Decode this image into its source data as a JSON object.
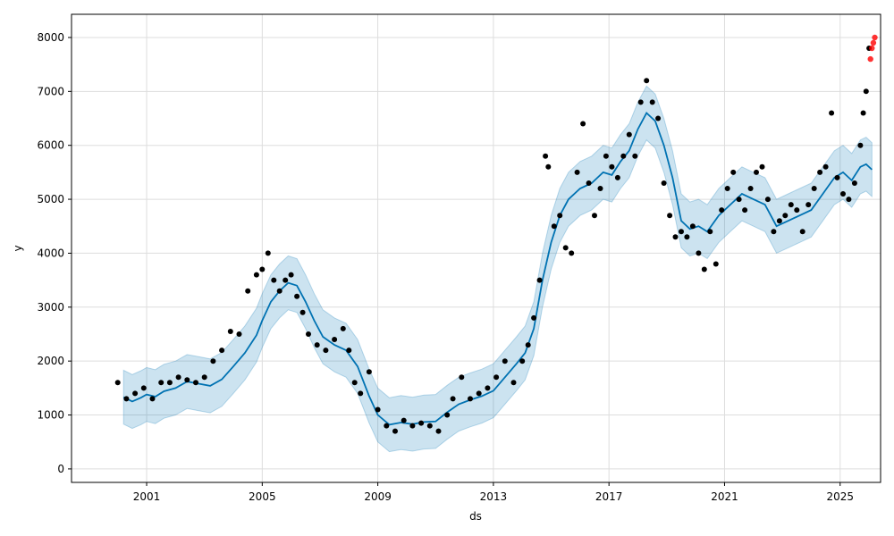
{
  "chart_data": {
    "type": "scatter",
    "title": "",
    "xlabel": "ds",
    "ylabel": "y",
    "xlim": [
      1998.4,
      2026.4
    ],
    "ylim": [
      -250,
      8430
    ],
    "grid": true,
    "x_ticks": [
      {
        "value": 2001,
        "label": "2001"
      },
      {
        "value": 2005,
        "label": "2005"
      },
      {
        "value": 2009,
        "label": "2009"
      },
      {
        "value": 2013,
        "label": "2013"
      },
      {
        "value": 2017,
        "label": "2017"
      },
      {
        "value": 2021,
        "label": "2021"
      },
      {
        "value": 2025,
        "label": "2025"
      }
    ],
    "y_ticks": [
      {
        "value": 0,
        "label": "0"
      },
      {
        "value": 1000,
        "label": "1000"
      },
      {
        "value": 2000,
        "label": "2000"
      },
      {
        "value": 3000,
        "label": "3000"
      },
      {
        "value": 4000,
        "label": "4000"
      },
      {
        "value": 5000,
        "label": "5000"
      },
      {
        "value": 6000,
        "label": "6000"
      },
      {
        "value": 7000,
        "label": "7000"
      },
      {
        "value": 8000,
        "label": "8000"
      }
    ],
    "colors": {
      "observed": "#000000",
      "recent": "#ff0000",
      "forecast_line": "#0072b2",
      "uncertainty_band": "#0072b2"
    },
    "series": [
      {
        "role": "forecast",
        "x": [
          2000.2,
          2000.5,
          2000.8,
          2001.0,
          2001.3,
          2001.6,
          2002.0,
          2002.4,
          2002.8,
          2003.2,
          2003.6,
          2004.0,
          2004.4,
          2004.8,
          2005.0,
          2005.3,
          2005.6,
          2005.9,
          2006.2,
          2006.5,
          2006.8,
          2007.1,
          2007.5,
          2007.9,
          2008.3,
          2008.7,
          2009.0,
          2009.4,
          2009.8,
          2010.2,
          2010.6,
          2011.0,
          2011.4,
          2011.8,
          2012.2,
          2012.6,
          2013.0,
          2013.4,
          2013.8,
          2014.1,
          2014.4,
          2014.7,
          2015.0,
          2015.3,
          2015.6,
          2016.0,
          2016.4,
          2016.8,
          2017.1,
          2017.4,
          2017.7,
          2018.0,
          2018.3,
          2018.6,
          2018.9,
          2019.2,
          2019.5,
          2019.8,
          2020.1,
          2020.4,
          2020.8,
          2021.2,
          2021.6,
          2022.0,
          2022.4,
          2022.8,
          2023.2,
          2023.6,
          2024.0,
          2024.4,
          2024.8,
          2025.1,
          2025.4,
          2025.7,
          2025.9,
          2026.1
        ],
        "yhat": [
          1330,
          1250,
          1320,
          1380,
          1340,
          1440,
          1500,
          1620,
          1580,
          1540,
          1660,
          1900,
          2150,
          2480,
          2750,
          3100,
          3300,
          3450,
          3400,
          3100,
          2750,
          2450,
          2300,
          2200,
          1900,
          1350,
          1000,
          820,
          860,
          830,
          870,
          880,
          1050,
          1200,
          1280,
          1350,
          1450,
          1700,
          1950,
          2150,
          2600,
          3500,
          4200,
          4700,
          5000,
          5200,
          5300,
          5500,
          5450,
          5700,
          5900,
          6300,
          6600,
          6450,
          6000,
          5400,
          4600,
          4450,
          4500,
          4400,
          4700,
          4900,
          5100,
          5000,
          4900,
          4500,
          4600,
          4700,
          4800,
          5100,
          5400,
          5500,
          5350,
          5600,
          5650,
          5550
        ],
        "yhat_lower": [
          830,
          750,
          820,
          880,
          840,
          940,
          1000,
          1120,
          1080,
          1040,
          1160,
          1400,
          1650,
          1980,
          2250,
          2600,
          2800,
          2950,
          2900,
          2600,
          2250,
          1950,
          1800,
          1700,
          1400,
          850,
          500,
          320,
          360,
          330,
          370,
          380,
          550,
          700,
          780,
          850,
          950,
          1200,
          1450,
          1650,
          2100,
          3000,
          3700,
          4200,
          4500,
          4700,
          4800,
          5000,
          4950,
          5200,
          5400,
          5800,
          6100,
          5950,
          5500,
          4900,
          4100,
          3950,
          4000,
          3900,
          4200,
          4400,
          4600,
          4500,
          4400,
          4000,
          4100,
          4200,
          4300,
          4600,
          4900,
          5000,
          4850,
          5100,
          5150,
          5050
        ],
        "yhat_upper": [
          1830,
          1750,
          1820,
          1880,
          1840,
          1940,
          2000,
          2120,
          2080,
          2040,
          2160,
          2400,
          2650,
          2980,
          3250,
          3600,
          3800,
          3950,
          3900,
          3600,
          3250,
          2950,
          2800,
          2700,
          2400,
          1850,
          1500,
          1320,
          1360,
          1330,
          1370,
          1380,
          1550,
          1700,
          1780,
          1850,
          1950,
          2200,
          2450,
          2650,
          3100,
          4000,
          4700,
          5200,
          5500,
          5700,
          5800,
          6000,
          5950,
          6200,
          6400,
          6800,
          7100,
          6950,
          6500,
          5900,
          5100,
          4950,
          5000,
          4900,
          5200,
          5400,
          5600,
          5500,
          5400,
          5000,
          5100,
          5200,
          5300,
          5600,
          5900,
          6000,
          5850,
          6100,
          6150,
          6050
        ]
      },
      {
        "role": "observed",
        "x": [
          2000.0,
          2000.3,
          2000.6,
          2000.9,
          2001.2,
          2001.5,
          2001.8,
          2002.1,
          2002.4,
          2002.7,
          2003.0,
          2003.3,
          2003.6,
          2003.9,
          2004.2,
          2004.5,
          2004.8,
          2005.0,
          2005.2,
          2005.4,
          2005.6,
          2005.8,
          2006.0,
          2006.2,
          2006.4,
          2006.6,
          2006.9,
          2007.2,
          2007.5,
          2007.8,
          2008.0,
          2008.2,
          2008.4,
          2008.7,
          2009.0,
          2009.3,
          2009.6,
          2009.9,
          2010.2,
          2010.5,
          2010.8,
          2011.1,
          2011.4,
          2011.6,
          2011.9,
          2012.2,
          2012.5,
          2012.8,
          2013.1,
          2013.4,
          2013.7,
          2014.0,
          2014.2,
          2014.4,
          2014.6,
          2014.8,
          2014.9,
          2015.1,
          2015.3,
          2015.5,
          2015.7,
          2015.9,
          2016.1,
          2016.3,
          2016.5,
          2016.7,
          2016.9,
          2017.1,
          2017.3,
          2017.5,
          2017.7,
          2017.9,
          2018.1,
          2018.3,
          2018.5,
          2018.7,
          2018.9,
          2019.1,
          2019.3,
          2019.5,
          2019.7,
          2019.9,
          2020.1,
          2020.3,
          2020.5,
          2020.7,
          2020.9,
          2021.1,
          2021.3,
          2021.5,
          2021.7,
          2021.9,
          2022.1,
          2022.3,
          2022.5,
          2022.7,
          2022.9,
          2023.1,
          2023.3,
          2023.5,
          2023.7,
          2023.9,
          2024.1,
          2024.3,
          2024.5,
          2024.7,
          2024.9,
          2025.1,
          2025.3,
          2025.5,
          2025.7,
          2025.8,
          2025.9,
          2026.0
        ],
        "y": [
          1600,
          1300,
          1400,
          1500,
          1300,
          1600,
          1600,
          1700,
          1650,
          1600,
          1700,
          2000,
          2200,
          2550,
          2500,
          3300,
          3600,
          3700,
          4000,
          3500,
          3300,
          3500,
          3600,
          3200,
          2900,
          2500,
          2300,
          2200,
          2400,
          2600,
          2200,
          1600,
          1400,
          1800,
          1100,
          800,
          700,
          900,
          800,
          850,
          800,
          700,
          1000,
          1300,
          1700,
          1300,
          1400,
          1500,
          1700,
          2000,
          1600,
          2000,
          2300,
          2800,
          3500,
          5800,
          5600,
          4500,
          4700,
          4100,
          4000,
          5500,
          6400,
          5300,
          4700,
          5200,
          5800,
          5600,
          5400,
          5800,
          6200,
          5800,
          6800,
          7200,
          6800,
          6500,
          5300,
          4700,
          4300,
          4400,
          4300,
          4500,
          4000,
          3700,
          4400,
          3800,
          4800,
          5200,
          5500,
          5000,
          4800,
          5200,
          5500,
          5600,
          5000,
          4400,
          4600,
          4700,
          4900,
          4800,
          4400,
          4900,
          5200,
          5500,
          5600,
          6600,
          5400,
          5100,
          5000,
          5300,
          6000,
          6600,
          7000,
          7800
        ],
        "note": "sampled"
      },
      {
        "role": "recent",
        "x": [
          2026.05,
          2026.1,
          2026.15,
          2026.2
        ],
        "y": [
          7600,
          7800,
          7900,
          8000
        ]
      }
    ]
  }
}
